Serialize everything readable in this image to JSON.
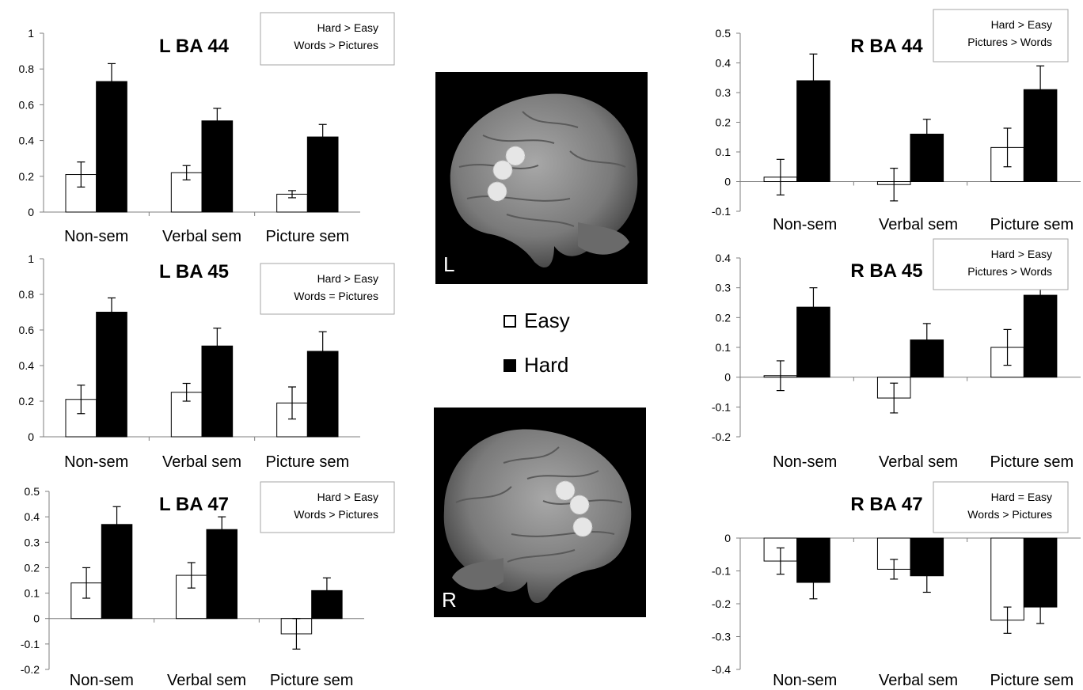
{
  "legend": {
    "easy_label": "Easy",
    "hard_label": "Hard"
  },
  "brain_panels": [
    {
      "label": "L"
    },
    {
      "label": "R"
    }
  ],
  "colors": {
    "easy": "#ffffff",
    "hard": "#000000",
    "axis": "#7f7f7f"
  },
  "chart_data": [
    {
      "type": "bar",
      "title": "L BA 44",
      "annotation": [
        "Hard > Easy",
        "Words > Pictures"
      ],
      "categories": [
        "Non-sem",
        "Verbal sem",
        "Picture sem"
      ],
      "ylim": [
        0,
        1
      ],
      "yticks": [
        "0",
        "0.2",
        "0.4",
        "0.6",
        "0.8",
        "1"
      ],
      "series": [
        {
          "name": "Easy",
          "values": [
            0.21,
            0.22,
            0.1
          ],
          "errors": [
            0.07,
            0.04,
            0.02
          ]
        },
        {
          "name": "Hard",
          "values": [
            0.73,
            0.51,
            0.42
          ],
          "errors": [
            0.1,
            0.07,
            0.07
          ]
        }
      ]
    },
    {
      "type": "bar",
      "title": "L BA 45",
      "annotation": [
        "Hard > Easy",
        "Words = Pictures"
      ],
      "categories": [
        "Non-sem",
        "Verbal sem",
        "Picture sem"
      ],
      "ylim": [
        0,
        1
      ],
      "yticks": [
        "0",
        "0.2",
        "0.4",
        "0.6",
        "0.8",
        "1"
      ],
      "series": [
        {
          "name": "Easy",
          "values": [
            0.21,
            0.25,
            0.19
          ],
          "errors": [
            0.08,
            0.05,
            0.09
          ]
        },
        {
          "name": "Hard",
          "values": [
            0.7,
            0.51,
            0.48
          ],
          "errors": [
            0.08,
            0.1,
            0.11
          ]
        }
      ]
    },
    {
      "type": "bar",
      "title": "L BA 47",
      "annotation": [
        "Hard > Easy",
        "Words > Pictures"
      ],
      "categories": [
        "Non-sem",
        "Verbal sem",
        "Picture sem"
      ],
      "ylim": [
        -0.2,
        0.5
      ],
      "yticks": [
        "-0.2",
        "-0.1",
        "0",
        "0.1",
        "0.2",
        "0.3",
        "0.4",
        "0.5"
      ],
      "series": [
        {
          "name": "Easy",
          "values": [
            0.14,
            0.17,
            -0.06
          ],
          "errors": [
            0.06,
            0.05,
            0.06
          ]
        },
        {
          "name": "Hard",
          "values": [
            0.37,
            0.35,
            0.11
          ],
          "errors": [
            0.07,
            0.05,
            0.05
          ]
        }
      ]
    },
    {
      "type": "bar",
      "title": "R BA 44",
      "annotation": [
        "Hard > Easy",
        "Pictures > Words"
      ],
      "categories": [
        "Non-sem",
        "Verbal sem",
        "Picture sem"
      ],
      "ylim": [
        -0.1,
        0.5
      ],
      "yticks": [
        "-0.1",
        "0",
        "0.1",
        "0.2",
        "0.3",
        "0.4",
        "0.5"
      ],
      "series": [
        {
          "name": "Easy",
          "values": [
            0.015,
            -0.01,
            0.115
          ],
          "errors": [
            0.06,
            0.055,
            0.065
          ]
        },
        {
          "name": "Hard",
          "values": [
            0.34,
            0.16,
            0.31
          ],
          "errors": [
            0.09,
            0.05,
            0.08
          ]
        }
      ]
    },
    {
      "type": "bar",
      "title": "R BA 45",
      "annotation": [
        "Hard > Easy",
        "Pictures > Words"
      ],
      "categories": [
        "Non-sem",
        "Verbal sem",
        "Picture sem"
      ],
      "ylim": [
        -0.2,
        0.4
      ],
      "yticks": [
        "-0.2",
        "-0.1",
        "0",
        "0.1",
        "0.2",
        "0.3",
        "0.4"
      ],
      "series": [
        {
          "name": "Easy",
          "values": [
            0.005,
            -0.07,
            0.1
          ],
          "errors": [
            0.05,
            0.05,
            0.06
          ]
        },
        {
          "name": "Hard",
          "values": [
            0.235,
            0.125,
            0.275
          ],
          "errors": [
            0.065,
            0.055,
            0.075
          ]
        }
      ]
    },
    {
      "type": "bar",
      "title": "R BA 47",
      "annotation": [
        "Hard = Easy",
        "Words > Pictures"
      ],
      "categories": [
        "Non-sem",
        "Verbal sem",
        "Picture sem"
      ],
      "ylim": [
        -0.4,
        0
      ],
      "yticks": [
        "-0.4",
        "-0.3",
        "-0.2",
        "-0.1",
        "0"
      ],
      "series": [
        {
          "name": "Easy",
          "values": [
            -0.07,
            -0.095,
            -0.25
          ],
          "errors": [
            0.04,
            0.03,
            0.04
          ]
        },
        {
          "name": "Hard",
          "values": [
            -0.135,
            -0.115,
            -0.21
          ],
          "errors": [
            0.05,
            0.05,
            0.05
          ]
        }
      ]
    }
  ]
}
